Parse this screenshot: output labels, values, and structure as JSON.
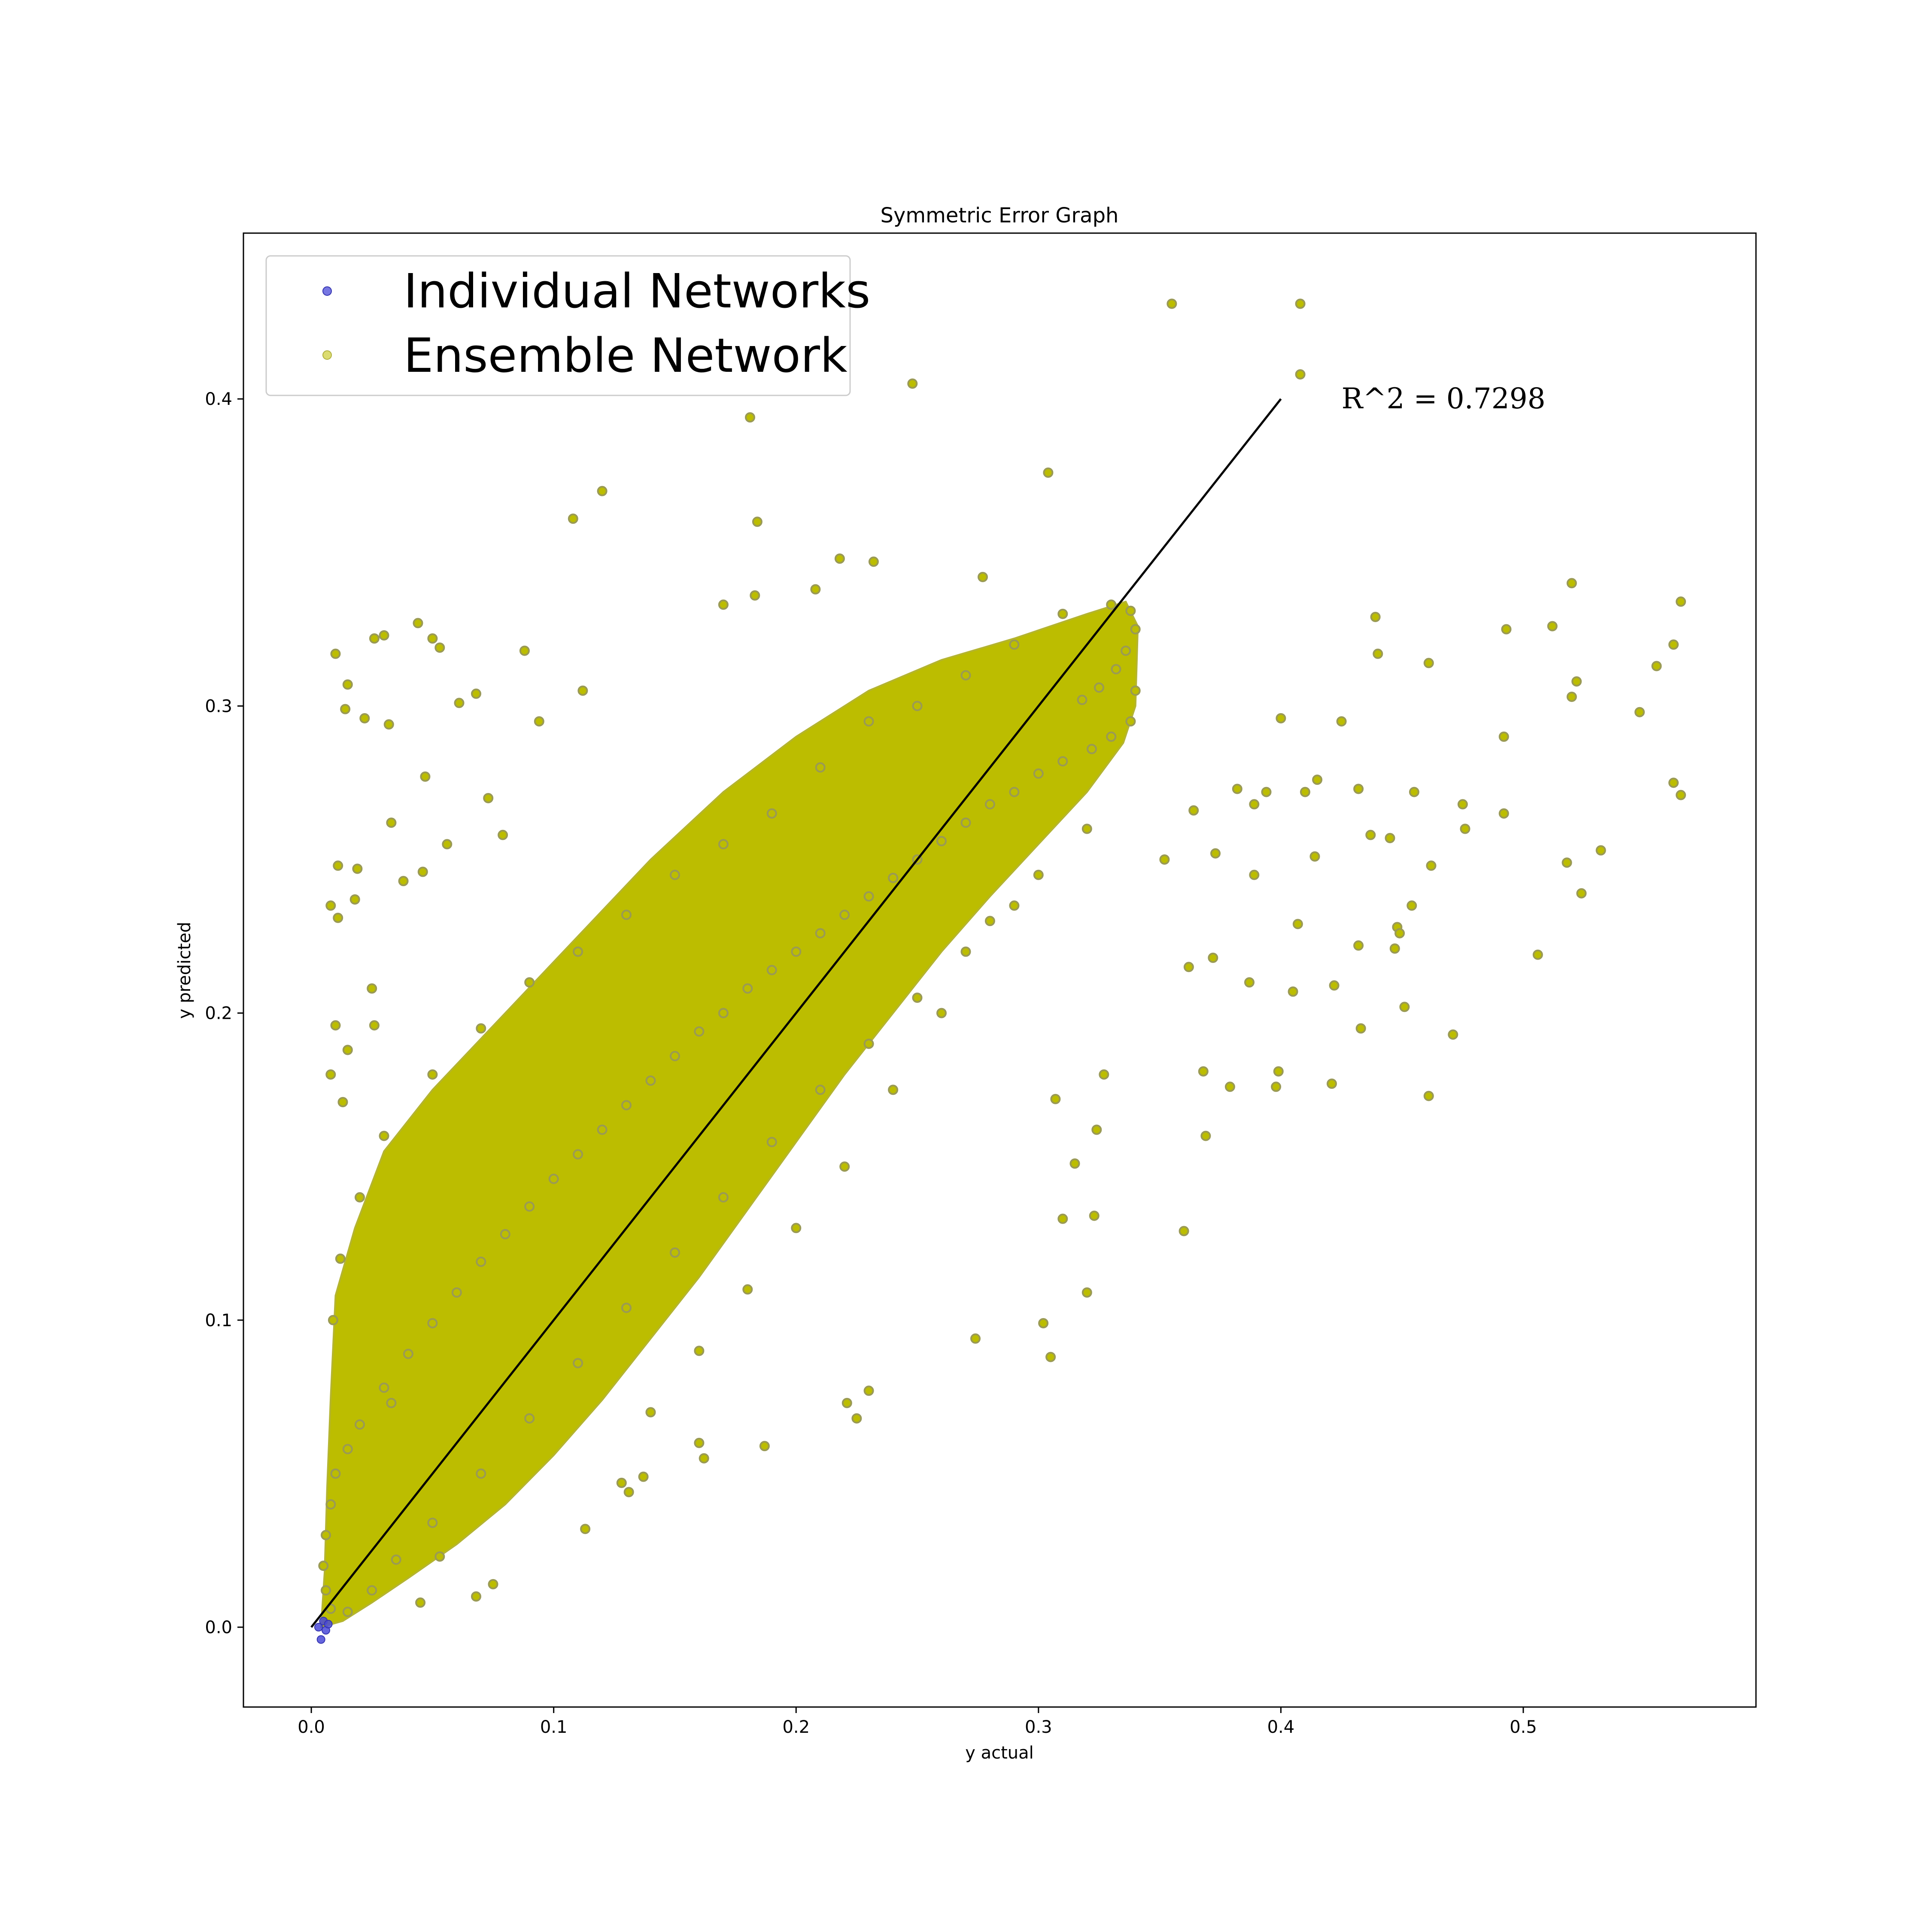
{
  "chart_data": {
    "type": "scatter",
    "title": "Symmetric Error Graph",
    "xlabel": "y actual",
    "ylabel": "y predicted",
    "xlim": [
      -0.028,
      0.596
    ],
    "ylim": [
      -0.026,
      0.454
    ],
    "x_ticks": [
      0.0,
      0.1,
      0.2,
      0.3,
      0.4,
      0.5
    ],
    "x_tick_labels": [
      "0.0",
      "0.1",
      "0.2",
      "0.3",
      "0.4",
      "0.5"
    ],
    "y_ticks": [
      0.0,
      0.1,
      0.2,
      0.3,
      0.4
    ],
    "y_tick_labels": [
      "0.0",
      "0.1",
      "0.2",
      "0.3",
      "0.4"
    ],
    "grid": false,
    "legend_position": "top-left",
    "annotation": {
      "text": "R^2 = 0.7298",
      "x": 0.425,
      "y": 0.4
    },
    "reference_line": {
      "x": [
        0.0,
        0.4
      ],
      "y": [
        0.0,
        0.4
      ],
      "color": "#000000"
    },
    "series": [
      {
        "name": "Individual Networks",
        "color": "#4a4ad8",
        "points": [
          [
            0.004,
            -0.004
          ],
          [
            0.006,
            -0.001
          ],
          [
            0.003,
            0.0
          ],
          [
            0.005,
            0.002
          ],
          [
            0.007,
            0.001
          ]
        ]
      },
      {
        "name": "Ensemble Network",
        "color": "#bcbd00",
        "edge_color": "#9a9a55",
        "points": [
          [
            0.355,
            0.431
          ],
          [
            0.408,
            0.431
          ],
          [
            0.408,
            0.408
          ],
          [
            0.248,
            0.405
          ],
          [
            0.181,
            0.394
          ],
          [
            0.304,
            0.376
          ],
          [
            0.12,
            0.37
          ],
          [
            0.108,
            0.361
          ],
          [
            0.184,
            0.36
          ],
          [
            0.218,
            0.348
          ],
          [
            0.232,
            0.347
          ],
          [
            0.277,
            0.342
          ],
          [
            0.52,
            0.34
          ],
          [
            0.208,
            0.338
          ],
          [
            0.183,
            0.336
          ],
          [
            0.565,
            0.334
          ],
          [
            0.17,
            0.333
          ],
          [
            0.044,
            0.327
          ],
          [
            0.439,
            0.329
          ],
          [
            0.493,
            0.325
          ],
          [
            0.01,
            0.317
          ],
          [
            0.03,
            0.323
          ],
          [
            0.026,
            0.322
          ],
          [
            0.05,
            0.322
          ],
          [
            0.053,
            0.319
          ],
          [
            0.088,
            0.318
          ],
          [
            0.44,
            0.317
          ],
          [
            0.461,
            0.314
          ],
          [
            0.562,
            0.32
          ],
          [
            0.512,
            0.326
          ],
          [
            0.522,
            0.308
          ],
          [
            0.555,
            0.313
          ],
          [
            0.52,
            0.303
          ],
          [
            0.548,
            0.298
          ],
          [
            0.015,
            0.307
          ],
          [
            0.014,
            0.299
          ],
          [
            0.022,
            0.296
          ],
          [
            0.032,
            0.294
          ],
          [
            0.4,
            0.296
          ],
          [
            0.425,
            0.295
          ],
          [
            0.492,
            0.29
          ],
          [
            0.068,
            0.304
          ],
          [
            0.061,
            0.301
          ],
          [
            0.112,
            0.305
          ],
          [
            0.094,
            0.295
          ],
          [
            0.047,
            0.277
          ],
          [
            0.073,
            0.27
          ],
          [
            0.382,
            0.273
          ],
          [
            0.41,
            0.272
          ],
          [
            0.415,
            0.276
          ],
          [
            0.389,
            0.268
          ],
          [
            0.455,
            0.272
          ],
          [
            0.475,
            0.268
          ],
          [
            0.562,
            0.275
          ],
          [
            0.565,
            0.271
          ],
          [
            0.364,
            0.266
          ],
          [
            0.394,
            0.272
          ],
          [
            0.432,
            0.273
          ],
          [
            0.033,
            0.262
          ],
          [
            0.056,
            0.255
          ],
          [
            0.079,
            0.258
          ],
          [
            0.492,
            0.265
          ],
          [
            0.476,
            0.26
          ],
          [
            0.445,
            0.257
          ],
          [
            0.437,
            0.258
          ],
          [
            0.532,
            0.253
          ],
          [
            0.011,
            0.248
          ],
          [
            0.019,
            0.247
          ],
          [
            0.018,
            0.237
          ],
          [
            0.038,
            0.243
          ],
          [
            0.046,
            0.246
          ],
          [
            0.373,
            0.252
          ],
          [
            0.414,
            0.251
          ],
          [
            0.352,
            0.25
          ],
          [
            0.389,
            0.245
          ],
          [
            0.462,
            0.248
          ],
          [
            0.518,
            0.249
          ],
          [
            0.524,
            0.239
          ],
          [
            0.454,
            0.235
          ],
          [
            0.008,
            0.235
          ],
          [
            0.011,
            0.231
          ],
          [
            0.407,
            0.229
          ],
          [
            0.448,
            0.228
          ],
          [
            0.449,
            0.226
          ],
          [
            0.447,
            0.221
          ],
          [
            0.432,
            0.222
          ],
          [
            0.506,
            0.219
          ],
          [
            0.362,
            0.215
          ],
          [
            0.372,
            0.218
          ],
          [
            0.405,
            0.207
          ],
          [
            0.387,
            0.21
          ],
          [
            0.422,
            0.209
          ],
          [
            0.451,
            0.202
          ],
          [
            0.433,
            0.195
          ],
          [
            0.471,
            0.193
          ],
          [
            0.379,
            0.176
          ],
          [
            0.398,
            0.176
          ],
          [
            0.421,
            0.177
          ],
          [
            0.399,
            0.181
          ],
          [
            0.368,
            0.181
          ],
          [
            0.461,
            0.173
          ],
          [
            0.369,
            0.16
          ],
          [
            0.36,
            0.129
          ],
          [
            0.315,
            0.151
          ],
          [
            0.302,
            0.099
          ],
          [
            0.305,
            0.088
          ],
          [
            0.32,
            0.109
          ],
          [
            0.31,
            0.133
          ],
          [
            0.323,
            0.134
          ],
          [
            0.307,
            0.172
          ],
          [
            0.324,
            0.162
          ],
          [
            0.327,
            0.18
          ],
          [
            0.274,
            0.094
          ],
          [
            0.23,
            0.077
          ],
          [
            0.221,
            0.073
          ],
          [
            0.225,
            0.068
          ],
          [
            0.187,
            0.059
          ],
          [
            0.162,
            0.055
          ],
          [
            0.16,
            0.06
          ],
          [
            0.113,
            0.032
          ],
          [
            0.068,
            0.01
          ],
          [
            0.075,
            0.014
          ],
          [
            0.053,
            0.023
          ],
          [
            0.045,
            0.008
          ],
          [
            0.128,
            0.047
          ],
          [
            0.137,
            0.049
          ],
          [
            0.131,
            0.044
          ],
          [
            0.033,
            0.073
          ],
          [
            0.013,
            0.171
          ],
          [
            0.008,
            0.18
          ],
          [
            0.025,
            0.208
          ],
          [
            0.026,
            0.196
          ],
          [
            0.01,
            0.196
          ],
          [
            0.015,
            0.188
          ],
          [
            0.33,
            0.333
          ],
          [
            0.338,
            0.331
          ],
          [
            0.34,
            0.325
          ],
          [
            0.336,
            0.318
          ],
          [
            0.332,
            0.312
          ],
          [
            0.325,
            0.306
          ],
          [
            0.318,
            0.302
          ],
          [
            0.34,
            0.305
          ],
          [
            0.338,
            0.295
          ],
          [
            0.33,
            0.29
          ],
          [
            0.322,
            0.286
          ],
          [
            0.31,
            0.282
          ],
          [
            0.3,
            0.278
          ],
          [
            0.29,
            0.272
          ],
          [
            0.28,
            0.268
          ],
          [
            0.27,
            0.262
          ],
          [
            0.26,
            0.256
          ],
          [
            0.25,
            0.25
          ],
          [
            0.24,
            0.244
          ],
          [
            0.23,
            0.238
          ],
          [
            0.22,
            0.232
          ],
          [
            0.21,
            0.226
          ],
          [
            0.2,
            0.22
          ],
          [
            0.19,
            0.214
          ],
          [
            0.18,
            0.208
          ],
          [
            0.17,
            0.2
          ],
          [
            0.16,
            0.194
          ],
          [
            0.15,
            0.186
          ],
          [
            0.14,
            0.178
          ],
          [
            0.13,
            0.17
          ],
          [
            0.12,
            0.162
          ],
          [
            0.11,
            0.154
          ],
          [
            0.1,
            0.146
          ],
          [
            0.09,
            0.137
          ],
          [
            0.08,
            0.128
          ],
          [
            0.07,
            0.119
          ],
          [
            0.06,
            0.109
          ],
          [
            0.05,
            0.099
          ],
          [
            0.04,
            0.089
          ],
          [
            0.03,
            0.078
          ],
          [
            0.02,
            0.066
          ],
          [
            0.015,
            0.058
          ],
          [
            0.01,
            0.05
          ],
          [
            0.008,
            0.04
          ],
          [
            0.006,
            0.03
          ],
          [
            0.005,
            0.02
          ],
          [
            0.006,
            0.012
          ],
          [
            0.008,
            0.006
          ],
          [
            0.31,
            0.33
          ],
          [
            0.29,
            0.32
          ],
          [
            0.27,
            0.31
          ],
          [
            0.25,
            0.3
          ],
          [
            0.23,
            0.295
          ],
          [
            0.21,
            0.28
          ],
          [
            0.19,
            0.265
          ],
          [
            0.17,
            0.255
          ],
          [
            0.15,
            0.245
          ],
          [
            0.13,
            0.232
          ],
          [
            0.11,
            0.22
          ],
          [
            0.09,
            0.21
          ],
          [
            0.07,
            0.195
          ],
          [
            0.05,
            0.18
          ],
          [
            0.03,
            0.16
          ],
          [
            0.02,
            0.14
          ],
          [
            0.012,
            0.12
          ],
          [
            0.009,
            0.1
          ],
          [
            0.29,
            0.235
          ],
          [
            0.27,
            0.22
          ],
          [
            0.25,
            0.205
          ],
          [
            0.23,
            0.19
          ],
          [
            0.21,
            0.175
          ],
          [
            0.19,
            0.158
          ],
          [
            0.17,
            0.14
          ],
          [
            0.15,
            0.122
          ],
          [
            0.13,
            0.104
          ],
          [
            0.11,
            0.086
          ],
          [
            0.09,
            0.068
          ],
          [
            0.07,
            0.05
          ],
          [
            0.05,
            0.034
          ],
          [
            0.035,
            0.022
          ],
          [
            0.025,
            0.012
          ],
          [
            0.015,
            0.005
          ],
          [
            0.32,
            0.26
          ],
          [
            0.3,
            0.245
          ],
          [
            0.28,
            0.23
          ],
          [
            0.26,
            0.2
          ],
          [
            0.24,
            0.175
          ],
          [
            0.22,
            0.15
          ],
          [
            0.2,
            0.13
          ],
          [
            0.18,
            0.11
          ],
          [
            0.16,
            0.09
          ],
          [
            0.14,
            0.07
          ]
        ]
      }
    ]
  }
}
